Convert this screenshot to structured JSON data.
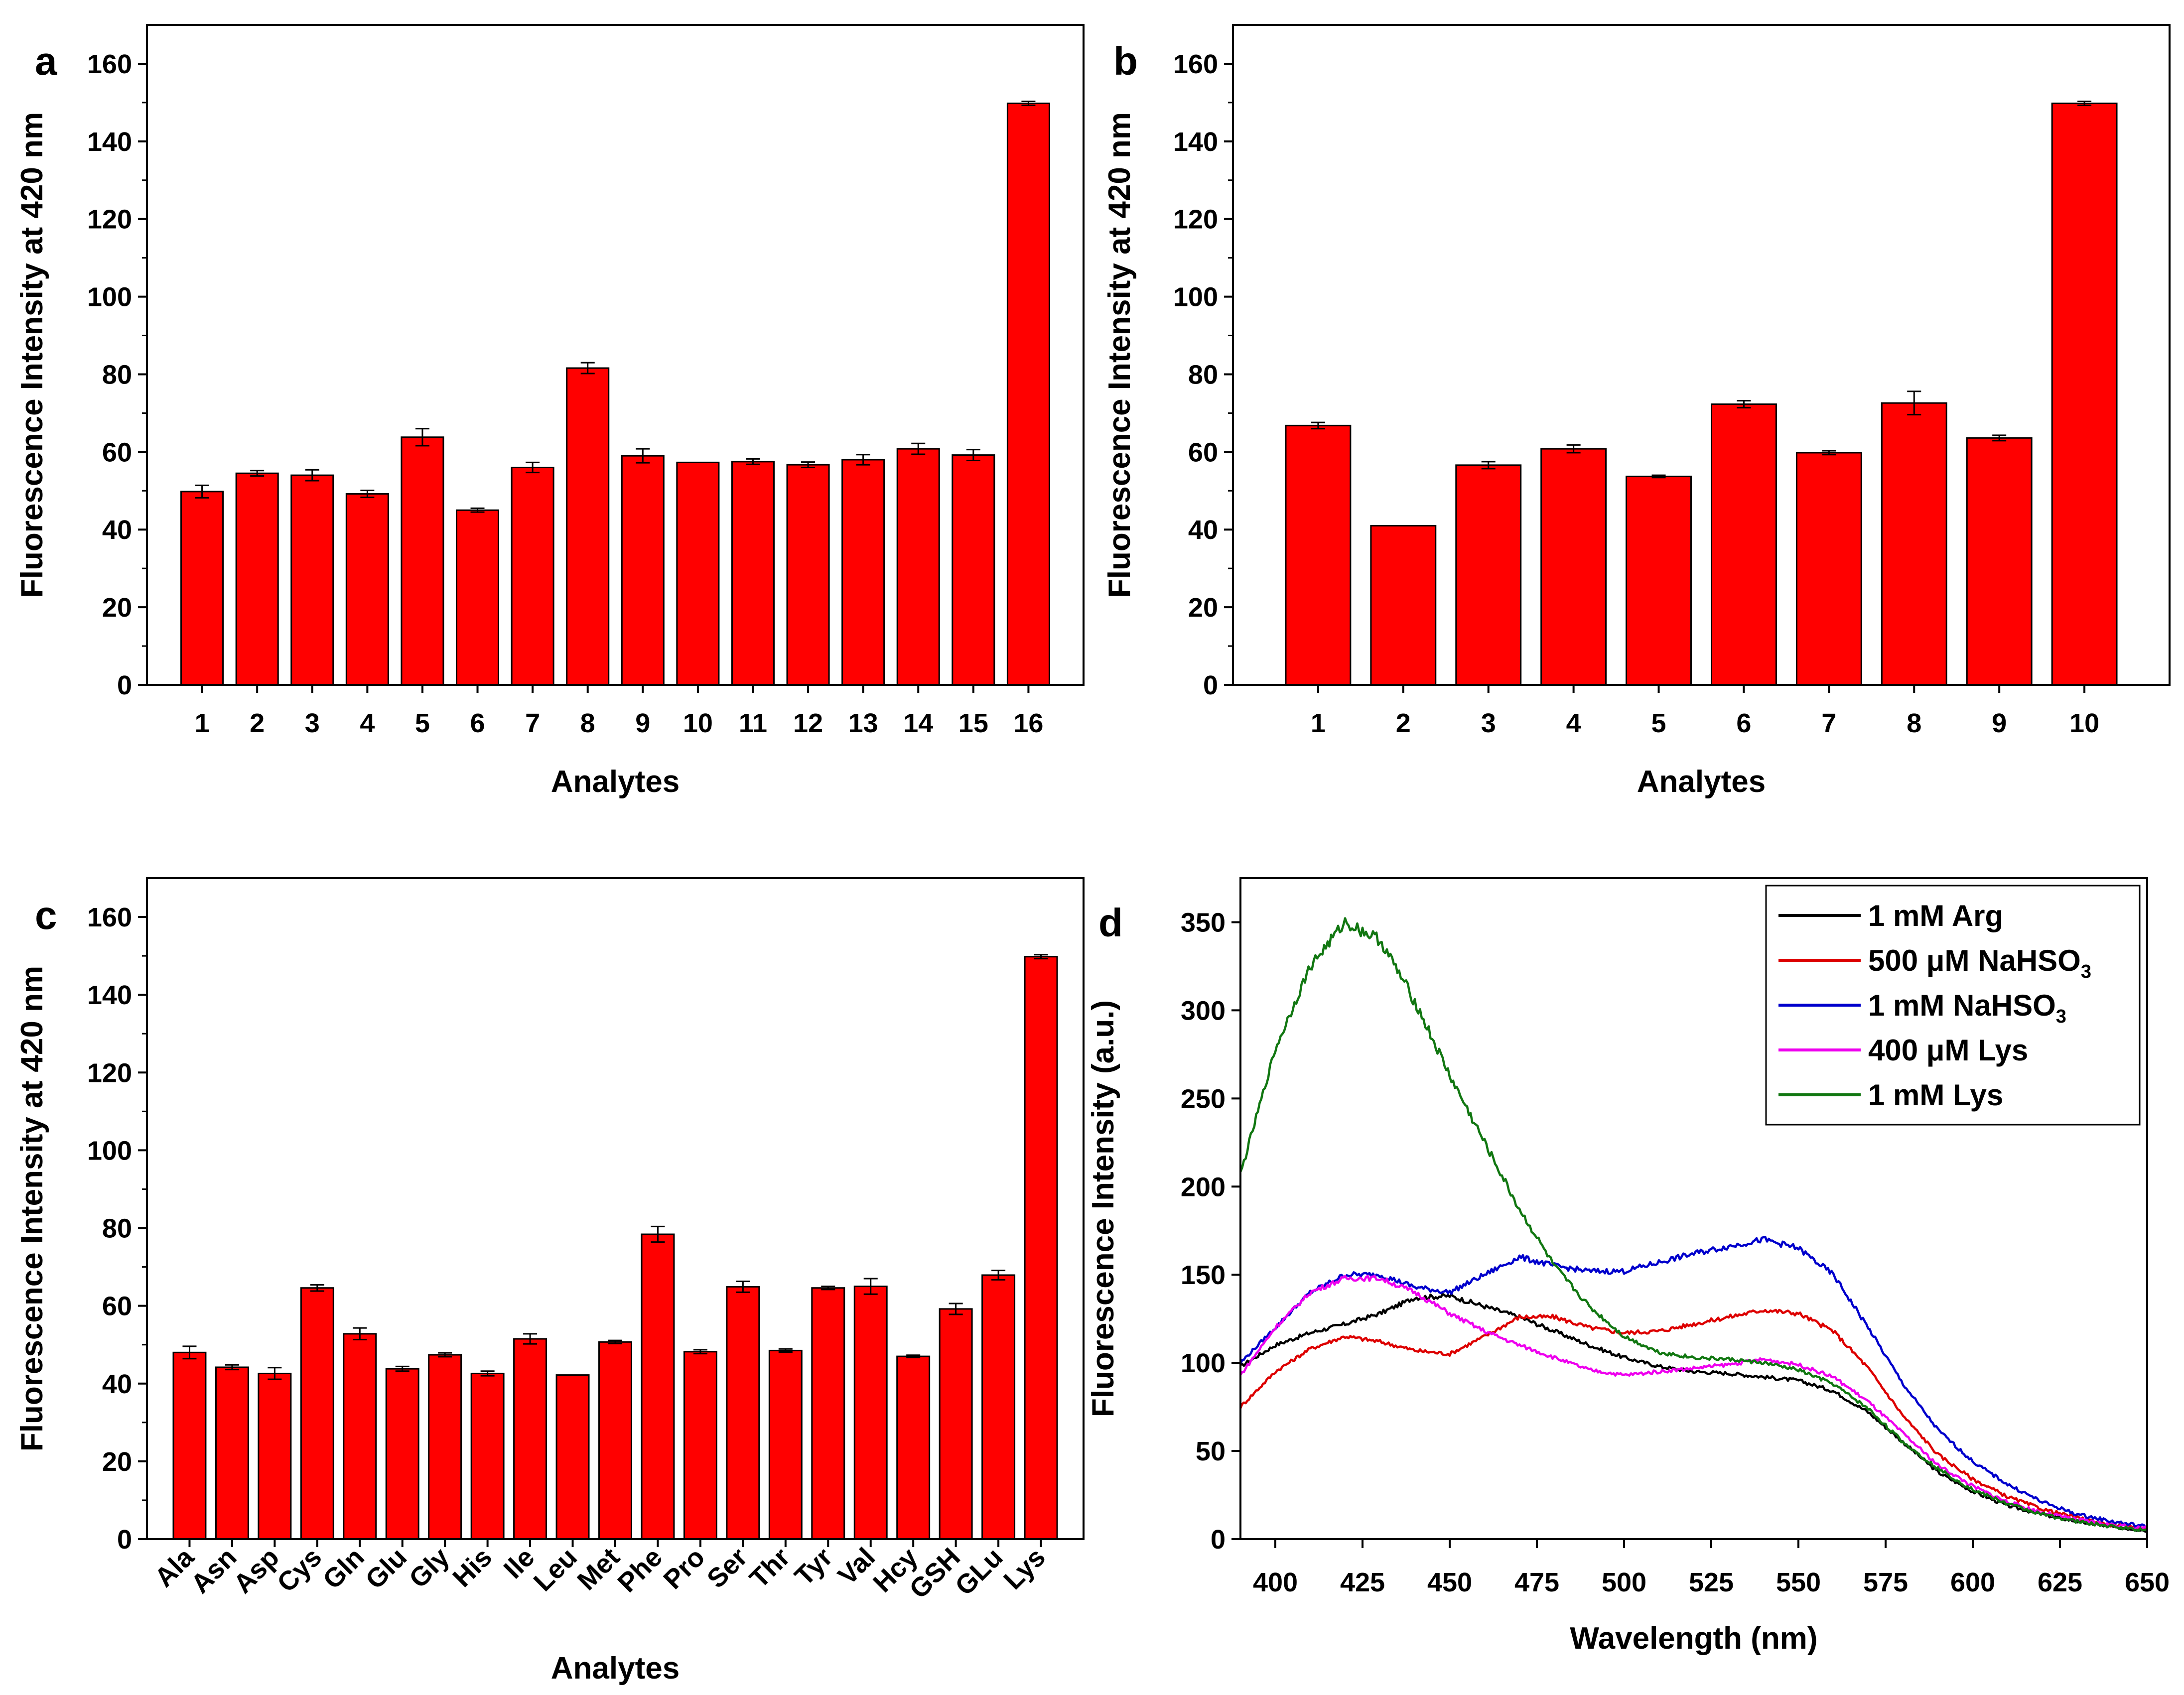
{
  "chart_data": [
    {
      "panel": "a",
      "type": "bar",
      "xlabel": "Analytes",
      "ylabel": "Fluorescence Intensity at 420 nm",
      "ylim": [
        0,
        170
      ],
      "yticks": [
        0,
        20,
        40,
        60,
        80,
        100,
        120,
        140,
        160
      ],
      "categories": [
        "1",
        "2",
        "3",
        "4",
        "5",
        "6",
        "7",
        "8",
        "9",
        "10",
        "11",
        "12",
        "13",
        "14",
        "15",
        "16"
      ],
      "values": [
        49.8,
        54.5,
        54.0,
        49.2,
        63.8,
        45.0,
        56.0,
        81.6,
        59.0,
        57.3,
        57.5,
        56.7,
        58.0,
        60.8,
        59.2,
        149.8
      ],
      "errors": [
        1.6,
        0.7,
        1.4,
        0.9,
        2.2,
        0.5,
        1.3,
        1.4,
        1.8,
        0.0,
        0.7,
        0.7,
        1.3,
        1.4,
        1.4,
        0.5
      ],
      "bar_color": "#ff0000",
      "grid": false
    },
    {
      "panel": "b",
      "type": "bar",
      "xlabel": "Analytes",
      "ylabel": "Fluorescence Intensity at 420 nm",
      "ylim": [
        0,
        170
      ],
      "yticks": [
        0,
        20,
        40,
        60,
        80,
        100,
        120,
        140,
        160
      ],
      "categories": [
        "1",
        "2",
        "3",
        "4",
        "5",
        "6",
        "7",
        "8",
        "9",
        "10"
      ],
      "values": [
        66.8,
        41.0,
        56.6,
        60.8,
        53.7,
        72.3,
        59.8,
        72.6,
        63.6,
        149.8
      ],
      "errors": [
        0.8,
        0.0,
        0.9,
        1.0,
        0.3,
        0.9,
        0.5,
        3.0,
        0.7,
        0.5
      ],
      "bar_color": "#ff0000",
      "grid": false
    },
    {
      "panel": "c",
      "type": "bar",
      "xlabel": "Analytes",
      "ylabel": "Fluorescence Intensity at 420 nm",
      "ylim": [
        0,
        170
      ],
      "yticks": [
        0,
        20,
        40,
        60,
        80,
        100,
        120,
        140,
        160
      ],
      "categories": [
        "Ala",
        "Asn",
        "Asp",
        "Cys",
        "Gln",
        "Glu",
        "Gly",
        "His",
        "Ile",
        "Leu",
        "Met",
        "Phe",
        "Pro",
        "Ser",
        "Thr",
        "Tyr",
        "Val",
        "Hcy",
        "GSH",
        "GLu",
        "Lys"
      ],
      "values": [
        48.0,
        44.2,
        42.6,
        64.6,
        52.8,
        43.8,
        47.4,
        42.6,
        51.5,
        42.2,
        50.7,
        78.4,
        48.2,
        64.9,
        48.5,
        64.6,
        65.0,
        47.0,
        59.2,
        67.9,
        149.8
      ],
      "errors": [
        1.6,
        0.6,
        1.5,
        0.8,
        1.5,
        0.6,
        0.5,
        0.6,
        1.3,
        0.0,
        0.4,
        2.0,
        0.5,
        1.4,
        0.4,
        0.4,
        2.0,
        0.3,
        1.4,
        1.2,
        0.5
      ],
      "bar_color": "#ff0000",
      "grid": false
    },
    {
      "panel": "d",
      "type": "line",
      "xlabel": "Wavelength (nm)",
      "ylabel": "Fluorescence Intensity (a.u.)",
      "xlim": [
        390,
        650
      ],
      "ylim": [
        0,
        375
      ],
      "xticks": [
        400,
        425,
        450,
        475,
        500,
        525,
        550,
        575,
        600,
        625,
        650
      ],
      "yticks": [
        0,
        50,
        100,
        150,
        200,
        250,
        300,
        350
      ],
      "legend_position": "top-right",
      "grid": false,
      "series": [
        {
          "name": "1 mM Arg",
          "color": "#000000",
          "x": [
            390,
            400,
            410,
            420,
            430,
            440,
            450,
            460,
            470,
            480,
            490,
            500,
            510,
            520,
            530,
            540,
            550,
            560,
            570,
            580,
            590,
            600,
            610,
            620,
            630,
            640,
            650
          ],
          "y": [
            98,
            110,
            117,
            122,
            128,
            137,
            138,
            132,
            126,
            118,
            110,
            103,
            98,
            95,
            94,
            92,
            90,
            84,
            72,
            55,
            38,
            27,
            19,
            14,
            10,
            7,
            5
          ]
        },
        {
          "name": "500 μM NaHSO",
          "name_sub": "3",
          "color": "#dd0000",
          "x": [
            390,
            400,
            410,
            420,
            430,
            440,
            450,
            460,
            470,
            480,
            490,
            500,
            510,
            520,
            530,
            540,
            550,
            560,
            570,
            580,
            590,
            600,
            610,
            620,
            630,
            640,
            650
          ],
          "y": [
            75,
            95,
            108,
            115,
            112,
            107,
            105,
            115,
            126,
            126,
            120,
            117,
            118,
            122,
            126,
            130,
            128,
            118,
            97,
            70,
            48,
            34,
            24,
            17,
            12,
            8,
            6
          ]
        },
        {
          "name": "1 mM NaHSO",
          "name_sub": "3",
          "color": "#0000cc",
          "x": [
            390,
            400,
            410,
            420,
            430,
            440,
            450,
            460,
            470,
            480,
            490,
            500,
            510,
            520,
            530,
            540,
            550,
            560,
            570,
            580,
            590,
            600,
            610,
            620,
            630,
            640,
            650
          ],
          "y": [
            100,
            120,
            140,
            150,
            150,
            143,
            140,
            150,
            160,
            155,
            152,
            152,
            157,
            162,
            166,
            170,
            165,
            150,
            120,
            88,
            62,
            44,
            31,
            21,
            14,
            10,
            7
          ]
        },
        {
          "name": "400 μM Lys",
          "name_sub": "",
          "color": "#ee00ee",
          "x": [
            390,
            400,
            410,
            420,
            430,
            440,
            450,
            460,
            470,
            480,
            490,
            500,
            510,
            520,
            530,
            540,
            550,
            560,
            570,
            580,
            590,
            600,
            610,
            620,
            630,
            640,
            650
          ],
          "y": [
            93,
            120,
            140,
            148,
            148,
            140,
            128,
            118,
            110,
            103,
            96,
            93,
            95,
            97,
            99,
            102,
            99,
            92,
            78,
            60,
            42,
            30,
            21,
            15,
            11,
            8,
            6
          ]
        },
        {
          "name": "1 mM Lys",
          "name_sub": "",
          "color": "#117711",
          "x": [
            390,
            400,
            410,
            420,
            430,
            440,
            450,
            460,
            470,
            480,
            490,
            500,
            510,
            520,
            530,
            540,
            550,
            560,
            570,
            580,
            590,
            600,
            610,
            620,
            630,
            640,
            650
          ],
          "y": [
            207,
            278,
            325,
            350,
            340,
            305,
            263,
            225,
            187,
            155,
            132,
            115,
            106,
            103,
            102,
            100,
            96,
            88,
            74,
            55,
            40,
            28,
            20,
            14,
            10,
            7,
            5
          ]
        }
      ]
    }
  ]
}
